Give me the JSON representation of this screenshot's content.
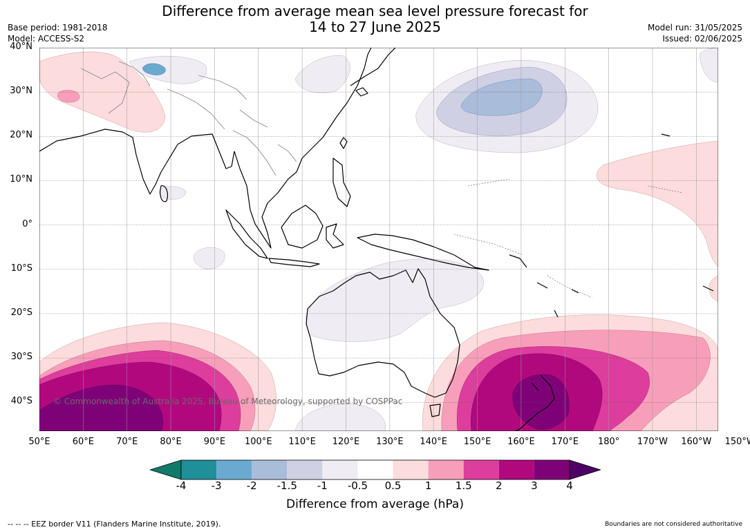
{
  "header": {
    "title_line1": "Difference from average mean sea level pressure forecast for",
    "title_line2": "14 to 27 June 2025",
    "base_period": "Base period: 1981-2018",
    "model": "Model: ACCESS-S2",
    "model_run": "Model run: 31/05/2025",
    "issued": "Issued: 02/06/2025"
  },
  "map": {
    "extent": {
      "lon_min": 50,
      "lon_max": 205,
      "lat_min": -46.5,
      "lat_max": 40
    },
    "lat_labels": [
      {
        "lat": 40,
        "text": "40°N"
      },
      {
        "lat": 30,
        "text": "30°N"
      },
      {
        "lat": 20,
        "text": "20°N"
      },
      {
        "lat": 10,
        "text": "10°N"
      },
      {
        "lat": 0,
        "text": "0°"
      },
      {
        "lat": -10,
        "text": "10°S"
      },
      {
        "lat": -20,
        "text": "20°S"
      },
      {
        "lat": -30,
        "text": "30°S"
      },
      {
        "lat": -40,
        "text": "40°S"
      }
    ],
    "lon_labels": [
      {
        "lon": 50,
        "text": "50°E"
      },
      {
        "lon": 60,
        "text": "60°E"
      },
      {
        "lon": 70,
        "text": "70°E"
      },
      {
        "lon": 80,
        "text": "80°E"
      },
      {
        "lon": 90,
        "text": "90°E"
      },
      {
        "lon": 100,
        "text": "100°E"
      },
      {
        "lon": 110,
        "text": "110°E"
      },
      {
        "lon": 120,
        "text": "120°E"
      },
      {
        "lon": 130,
        "text": "130°E"
      },
      {
        "lon": 140,
        "text": "140°E"
      },
      {
        "lon": 150,
        "text": "150°E"
      },
      {
        "lon": 160,
        "text": "160°E"
      },
      {
        "lon": 170,
        "text": "170°E"
      },
      {
        "lon": 180,
        "text": "180°"
      },
      {
        "lon": 190,
        "text": "170°W"
      },
      {
        "lon": 200,
        "text": "160°W"
      },
      {
        "lon": 210,
        "text": "150°W"
      }
    ],
    "copyright": "© Commonwealth of Australia 2025, Bureau of Meteorology, supported by COSPPac",
    "land_outline_color": "#000000",
    "border_color": "#8a8a8a"
  },
  "colorbar": {
    "label": "Difference from average (hPa)",
    "bins": [
      {
        "color": "#117a6a"
      },
      {
        "color": "#1f8f9a"
      },
      {
        "color": "#6aaad0"
      },
      {
        "color": "#a9bcd9"
      },
      {
        "color": "#cfd0e4"
      },
      {
        "color": "#f0ecf3"
      },
      {
        "color": "#ffffff"
      },
      {
        "color": "#fcdcdc"
      },
      {
        "color": "#f79fba"
      },
      {
        "color": "#dd3d9c"
      },
      {
        "color": "#b2087e"
      },
      {
        "color": "#7f0178"
      },
      {
        "color": "#4d0066"
      }
    ],
    "ticks": [
      "-4",
      "-3",
      "-2",
      "-1.5",
      "-1",
      "-0.5",
      "0.5",
      "1",
      "1.5",
      "2",
      "3",
      "4"
    ]
  },
  "footer": {
    "left": "--  --  -- EEZ border V11 (Flanders Marine Institute, 2019).",
    "right": "Boundaries are not considered authoritative"
  }
}
